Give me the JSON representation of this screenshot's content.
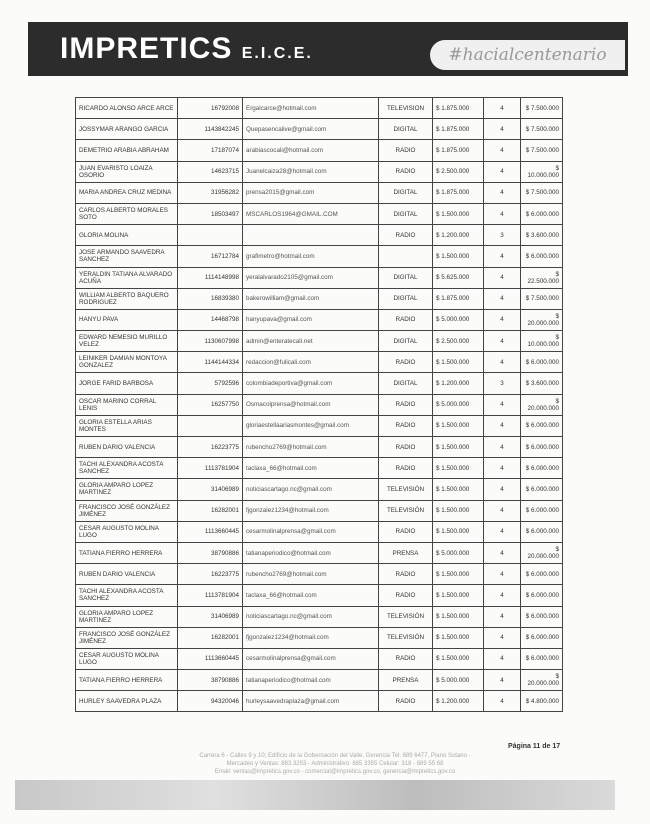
{
  "header": {
    "logo": "IMPRETICS",
    "logo_suffix": "E.I.C.E.",
    "tagline": "#hacialcentenario"
  },
  "rows": [
    [
      "RICARDO ALONSO ARCE ARCE",
      "16792008",
      "Ergalcarce@hotmail.com",
      "TELEVISION",
      "$ 1.875.000",
      "4",
      "$ 7.500.000"
    ],
    [
      "JOSSYMAR ARANGO GARCIA",
      "1143842245",
      "Quepasencalive@gmail.com",
      "DIGITAL",
      "$ 1.875.000",
      "4",
      "$ 7.500.000"
    ],
    [
      "DEMETRIO ARABIA ABRAHAM",
      "17187074",
      "arabiascocali@hotmail.com",
      "RADIO",
      "$ 1.875.000",
      "4",
      "$ 7.500.000"
    ],
    [
      "JUAN EVARISTO LOAIZA OSORIO",
      "14623715",
      "Juanelcaiza28@hotmail.com",
      "RADIO",
      "$ 2.500.000",
      "4",
      "$ 10.000.000"
    ],
    [
      "MARIA ANDREA CRUZ MEDINA",
      "31956282",
      "prensa2015@gmail.com",
      "DIGITAL",
      "$ 1.875.000",
      "4",
      "$ 7.500.000"
    ],
    [
      "CARLOS ALBERTO MORALES SOTO",
      "18503497",
      "MSCARLOS1964@GMAIL.COM",
      "DIGITAL",
      "$ 1.500.000",
      "4",
      "$ 6.000.000"
    ],
    [
      "GLORIA MOLINA",
      "",
      "",
      "RADIO",
      "$ 1.200.000",
      "3",
      "$ 3.600.000"
    ],
    [
      "JOSE ARMANDO SAAVEDRA SANCHEZ",
      "16712784",
      "grafimetro@hotmail.com",
      "",
      "$ 1.500.000",
      "4",
      "$ 6.000.000"
    ],
    [
      "YERALDIN TATIANA ALVARADO ACUÑA",
      "1114148998",
      "yeralalvarado2105@gmail.com",
      "DIGITAL",
      "$ 5.625.000",
      "4",
      "$ 22.500.000"
    ],
    [
      "WILLIAM ALBERTO BAQUERO RODRIGUEZ",
      "16839380",
      "bakerowilliam@gmail.com",
      "DIGITAL",
      "$ 1.875.000",
      "4",
      "$ 7.500.000"
    ],
    [
      "HANYU PAVA",
      "14468798",
      "hanyupava@gmail.com",
      "RADIO",
      "$ 5.000.000",
      "4",
      "$ 20.000.000"
    ],
    [
      "EDWARD NEMESIO MURILLO VELEZ",
      "1130607998",
      "admin@enteratecali.net",
      "DIGITAL",
      "$ 2.500.000",
      "4",
      "$ 10.000.000"
    ],
    [
      "LEINIKER DAMIAN MONTOYA GONZALEZ",
      "1144144334",
      "redaccion@fulicali.com",
      "RADIO",
      "$ 1.500.000",
      "4",
      "$ 6.000.000"
    ],
    [
      "JORGE FARID BARBOSA",
      "5792596",
      "colombiadeportiva@gmail.com",
      "DIGITAL",
      "$ 1.200.000",
      "3",
      "$ 3.600.000"
    ],
    [
      "OSCAR MARINO CORRAL LENIS",
      "16257750",
      "Osmacolprensa@hotmail.com",
      "RADIO",
      "$ 5.000.000",
      "4",
      "$ 20.000.000"
    ],
    [
      "GLORIA ESTELLA ARIAS MONTES",
      "",
      "gloriaestellaariasmontes@gmail.com",
      "RADIO",
      "$ 1.500.000",
      "4",
      "$ 6.000.000"
    ],
    [
      "RUBEN DARIO VALENCIA",
      "16223775",
      "rubencho2769@hotmail.com",
      "RADIO",
      "$ 1.500.000",
      "4",
      "$ 6.000.000"
    ],
    [
      "TACHI ALEXANDRA ACOSTA SANCHEZ",
      "1113781904",
      "taclaxa_66@hotmail.com",
      "RADIO",
      "$ 1.500.000",
      "4",
      "$ 6.000.000"
    ],
    [
      "GLORIA AMPARO LOPEZ MARTINEZ",
      "31406989",
      "noticiascartago.nc@gmail.com",
      "TELEVISIÓN",
      "$ 1.500.000",
      "4",
      "$ 6.000.000"
    ],
    [
      "FRANCISCO JOSÉ GONZÁLEZ JIMÉNEZ",
      "16282001",
      "fjgonzalez1234@hotmail.com",
      "TELEVISIÓN",
      "$ 1.500.000",
      "4",
      "$ 6.000.000"
    ],
    [
      "CESAR AUGUSTO MOLINA LUGO",
      "1113660445",
      "cesarmolinalprensa@gmail.com",
      "RADIO",
      "$ 1.500.000",
      "4",
      "$ 6.000.000"
    ],
    [
      "TATIANA FIERRO HERRERA",
      "38790886",
      "tatianaperiodico@hotmail.com",
      "PRENSA",
      "$ 5.000.000",
      "4",
      "$ 20.000.000"
    ],
    [
      "RUBEN DARIO VALENCIA",
      "16223775",
      "rubencho2769@hotmail.com",
      "RADIO",
      "$ 1.500.000",
      "4",
      "$ 6.000.000"
    ],
    [
      "TACHI ALEXANDRA ACOSTA SANCHEZ",
      "1113781904",
      "taclaxa_66@hotmail.com",
      "RADIO",
      "$ 1.500.000",
      "4",
      "$ 6.000.000"
    ],
    [
      "GLORIA AMPARO LOPEZ MARTINEZ",
      "31406989",
      "noticiascartago.nc@gmail.com",
      "TELEVISIÓN",
      "$ 1.500.000",
      "4",
      "$ 6.000.000"
    ],
    [
      "FRANCISCO JOSÉ GONZÁLEZ JIMÉNEZ",
      "16282001",
      "fjgonzalez1234@hotmail.com",
      "TELEVISIÓN",
      "$ 1.500.000",
      "4",
      "$ 6.000.000"
    ],
    [
      "CESAR AUGUSTO MOLINA LUGO",
      "1113660445",
      "cesarmolinalprensa@gmail.com",
      "RADIO",
      "$ 1.500.000",
      "4",
      "$ 6.000.000"
    ],
    [
      "TATIANA FIERRO HERRERA",
      "38790886",
      "tatianaperiodico@hotmail.com",
      "PRENSA",
      "$ 5.000.000",
      "4",
      "$ 20.000.000"
    ],
    [
      "HURLEY SAAVEDRA PLAZA",
      "94320046",
      "hurleysaavedraplaza@gmail.com",
      "RADIO",
      "$ 1.200.000",
      "4",
      "$ 4.800.000"
    ]
  ],
  "footer": {
    "page": "Página 11 de 17",
    "line1": "Carrera 6 - Calles 9 y 10; Edificio de la Gobernación del Valle, Gerencia Tel: 889 6477, Piano Sotano -",
    "line2": "Mercadeo y Ventas: 883 3253 - Administrativo: 885 3355 Celular: 318 - 889 55 68",
    "line3": "Email: ventas@impretics.gov.co - comercial@impretics.gov.co, gerencia@impretics.gov.co"
  }
}
